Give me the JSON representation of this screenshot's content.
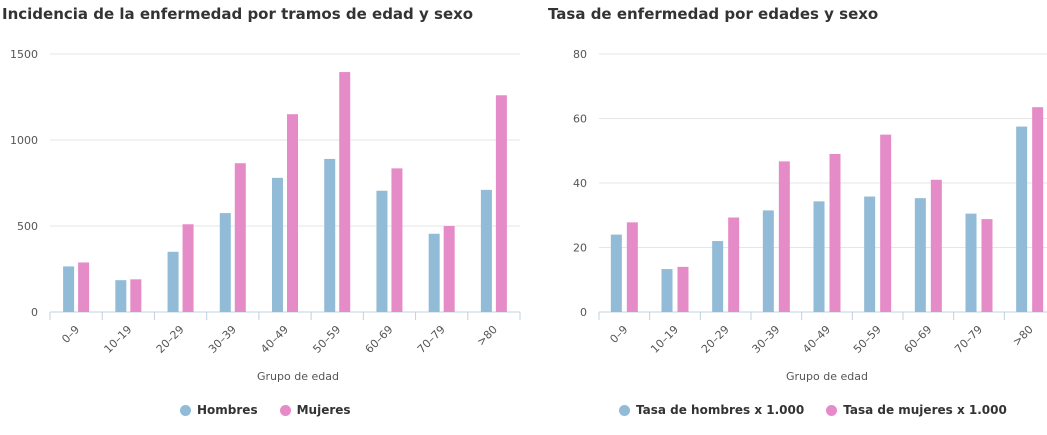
{
  "colors": {
    "hombres": "#91bbd6",
    "mujeres": "#e58bc7",
    "grid": "#e6e6e6",
    "axis": "#c0d0e0"
  },
  "chart_data": [
    {
      "type": "bar",
      "title": "Incidencia de la enfermedad por tramos de edad y sexo",
      "xlabel": "Grupo de edad",
      "ylabel": "",
      "categories": [
        "0–9",
        "10–19",
        "20–29",
        "30–39",
        "40–49",
        "50–59",
        "60–69",
        "70–79",
        ">80"
      ],
      "yticks": [
        "0",
        "500",
        "1000",
        "1500"
      ],
      "ylim": [
        0,
        1500
      ],
      "grid": true,
      "legend": "bottom",
      "series": [
        {
          "name": "Hombres",
          "color": "#91bbd6",
          "values": [
            265,
            185,
            350,
            575,
            780,
            890,
            705,
            455,
            710
          ]
        },
        {
          "name": "Mujeres",
          "color": "#e58bc7",
          "values": [
            288,
            190,
            510,
            865,
            1150,
            1395,
            835,
            500,
            1260
          ]
        }
      ]
    },
    {
      "type": "bar",
      "title": "Tasa de enfermedad por edades y sexo",
      "xlabel": "Grupo de edad",
      "ylabel": "",
      "categories": [
        "0–9",
        "10–19",
        "20–29",
        "30–39",
        "40–49",
        "50–59",
        "60–69",
        "70–79",
        ">80"
      ],
      "yticks": [
        "0",
        "20",
        "40",
        "60",
        "80"
      ],
      "ylim": [
        0,
        80
      ],
      "grid": true,
      "legend": "bottom",
      "series": [
        {
          "name": "Tasa de hombres x 1.000",
          "color": "#91bbd6",
          "values": [
            24,
            13.3,
            22,
            31.5,
            34.3,
            35.8,
            35.3,
            30.5,
            57.5
          ]
        },
        {
          "name": "Tasa de mujeres x 1.000",
          "color": "#e58bc7",
          "values": [
            27.8,
            14,
            29.3,
            46.7,
            49,
            55,
            41,
            28.8,
            63.5
          ]
        }
      ]
    }
  ]
}
